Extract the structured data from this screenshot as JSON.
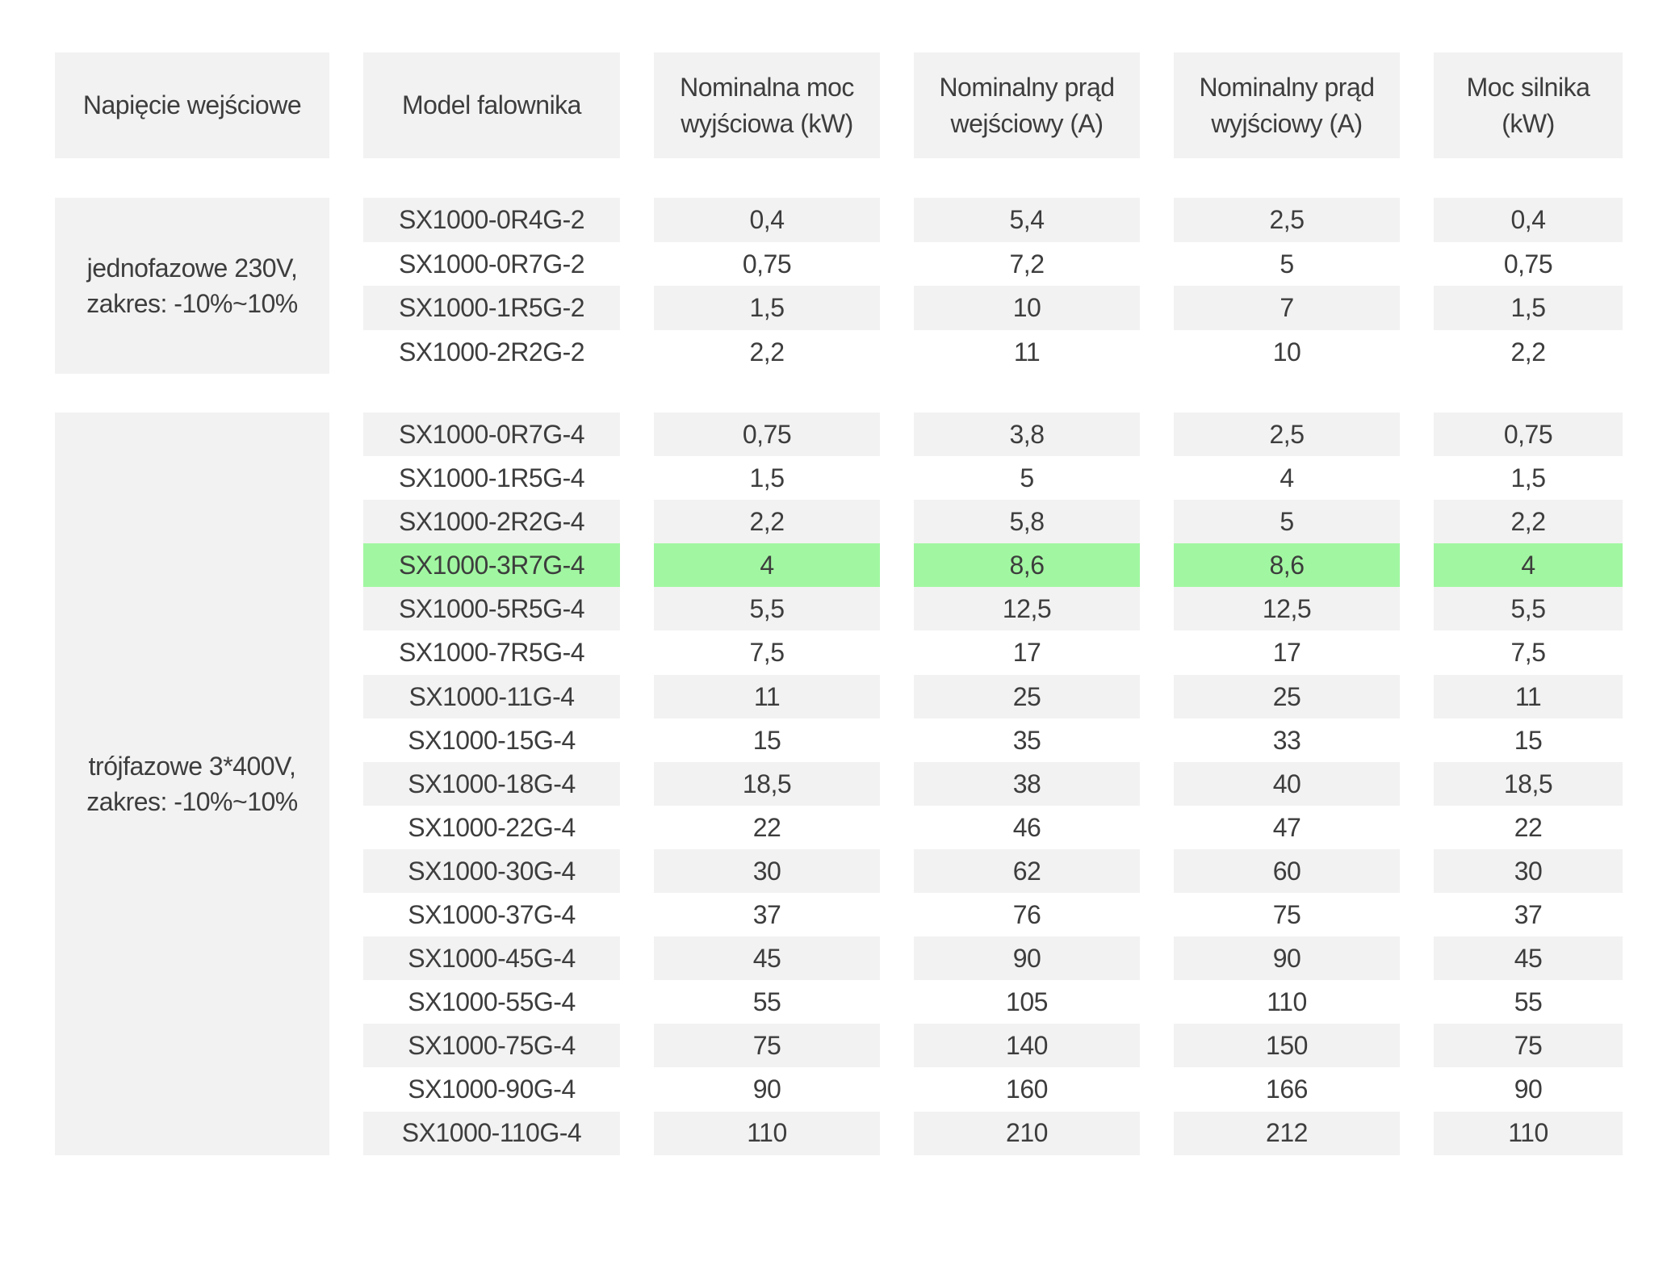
{
  "colors": {
    "highlight_green": "#a1f7a1",
    "cell_gray": "#f2f2f2",
    "text_color": "#3d3d3d"
  },
  "table": {
    "columns": [
      {
        "label": "Napięcie wejściowe"
      },
      {
        "label": "Model falownika"
      },
      {
        "label": "Nominalna moc\nwyjściowa (kW)"
      },
      {
        "label": "Nominalny prąd\nwejściowy (A)"
      },
      {
        "label": "Nominalny prąd\nwyjściowy (A)"
      },
      {
        "label": "Moc silnika\n(kW)"
      }
    ],
    "groups": [
      {
        "voltage": "jednofazowe 230V,\nzakres: -10%~10%",
        "rows": [
          {
            "model": "SX1000-0R4G-2",
            "output_power_kw": "0,4",
            "input_current_a": "5,4",
            "output_current_a": "2,5",
            "motor_power_kw": "0,4",
            "highlight": false
          },
          {
            "model": "SX1000-0R7G-2",
            "output_power_kw": "0,75",
            "input_current_a": "7,2",
            "output_current_a": "5",
            "motor_power_kw": "0,75",
            "highlight": false
          },
          {
            "model": "SX1000-1R5G-2",
            "output_power_kw": "1,5",
            "input_current_a": "10",
            "output_current_a": "7",
            "motor_power_kw": "1,5",
            "highlight": false
          },
          {
            "model": "SX1000-2R2G-2",
            "output_power_kw": "2,2",
            "input_current_a": "11",
            "output_current_a": "10",
            "motor_power_kw": "2,2",
            "highlight": false
          }
        ]
      },
      {
        "voltage": "trójfazowe 3*400V,\nzakres: -10%~10%",
        "rows": [
          {
            "model": "SX1000-0R7G-4",
            "output_power_kw": "0,75",
            "input_current_a": "3,8",
            "output_current_a": "2,5",
            "motor_power_kw": "0,75",
            "highlight": false
          },
          {
            "model": "SX1000-1R5G-4",
            "output_power_kw": "1,5",
            "input_current_a": "5",
            "output_current_a": "4",
            "motor_power_kw": "1,5",
            "highlight": false
          },
          {
            "model": "SX1000-2R2G-4",
            "output_power_kw": "2,2",
            "input_current_a": "5,8",
            "output_current_a": "5",
            "motor_power_kw": "2,2",
            "highlight": false
          },
          {
            "model": "SX1000-3R7G-4",
            "output_power_kw": "4",
            "input_current_a": "8,6",
            "output_current_a": "8,6",
            "motor_power_kw": "4",
            "highlight": true
          },
          {
            "model": "SX1000-5R5G-4",
            "output_power_kw": "5,5",
            "input_current_a": "12,5",
            "output_current_a": "12,5",
            "motor_power_kw": "5,5",
            "highlight": false
          },
          {
            "model": "SX1000-7R5G-4",
            "output_power_kw": "7,5",
            "input_current_a": "17",
            "output_current_a": "17",
            "motor_power_kw": "7,5",
            "highlight": false
          },
          {
            "model": "SX1000-11G-4",
            "output_power_kw": "11",
            "input_current_a": "25",
            "output_current_a": "25",
            "motor_power_kw": "11",
            "highlight": false
          },
          {
            "model": "SX1000-15G-4",
            "output_power_kw": "15",
            "input_current_a": "35",
            "output_current_a": "33",
            "motor_power_kw": "15",
            "highlight": false
          },
          {
            "model": "SX1000-18G-4",
            "output_power_kw": "18,5",
            "input_current_a": "38",
            "output_current_a": "40",
            "motor_power_kw": "18,5",
            "highlight": false
          },
          {
            "model": "SX1000-22G-4",
            "output_power_kw": "22",
            "input_current_a": "46",
            "output_current_a": "47",
            "motor_power_kw": "22",
            "highlight": false
          },
          {
            "model": "SX1000-30G-4",
            "output_power_kw": "30",
            "input_current_a": "62",
            "output_current_a": "60",
            "motor_power_kw": "30",
            "highlight": false
          },
          {
            "model": "SX1000-37G-4",
            "output_power_kw": "37",
            "input_current_a": "76",
            "output_current_a": "75",
            "motor_power_kw": "37",
            "highlight": false
          },
          {
            "model": "SX1000-45G-4",
            "output_power_kw": "45",
            "input_current_a": "90",
            "output_current_a": "90",
            "motor_power_kw": "45",
            "highlight": false
          },
          {
            "model": "SX1000-55G-4",
            "output_power_kw": "55",
            "input_current_a": "105",
            "output_current_a": "110",
            "motor_power_kw": "55",
            "highlight": false
          },
          {
            "model": "SX1000-75G-4",
            "output_power_kw": "75",
            "input_current_a": "140",
            "output_current_a": "150",
            "motor_power_kw": "75",
            "highlight": false
          },
          {
            "model": "SX1000-90G-4",
            "output_power_kw": "90",
            "input_current_a": "160",
            "output_current_a": "166",
            "motor_power_kw": "90",
            "highlight": false
          },
          {
            "model": "SX1000-110G-4",
            "output_power_kw": "110",
            "input_current_a": "210",
            "output_current_a": "212",
            "motor_power_kw": "110",
            "highlight": false
          }
        ]
      }
    ]
  }
}
